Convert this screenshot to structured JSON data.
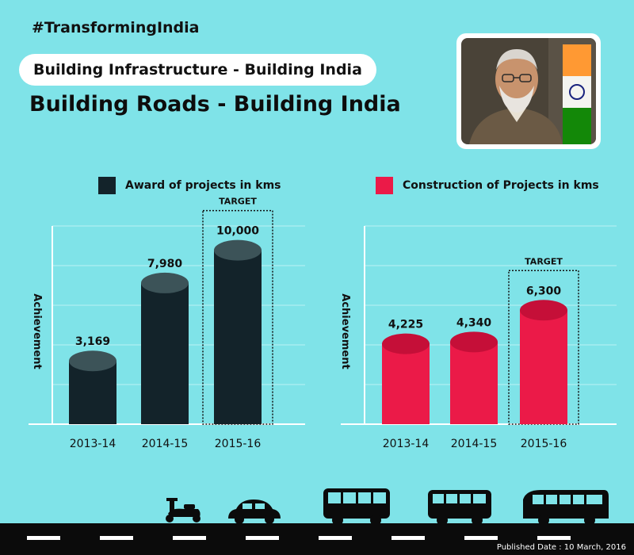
{
  "header": {
    "hashtag": "#TransformingIndia",
    "pill": "Building Infrastructure - Building India",
    "headline": "Building Roads - Building India"
  },
  "footer": {
    "published": "Published Date : 10 March, 2016"
  },
  "colors": {
    "background": "#7fe3e8",
    "award_bar": "#13232a",
    "award_top": "#3c5358",
    "construction_bar": "#eb1a48",
    "construction_top": "#c50f38"
  },
  "icons": [
    "scooter-icon",
    "car-icon",
    "bus-icon",
    "van-icon",
    "coach-icon",
    "portrait-photo"
  ],
  "chart_data": [
    {
      "type": "bar",
      "legend": "Award of projects in kms",
      "ylabel": "Achievement",
      "categories": [
        "2013-14",
        "2014-15",
        "2015-16"
      ],
      "values": [
        3169,
        7980,
        10000
      ],
      "labels": [
        "3,169",
        "7,980",
        "10,000"
      ],
      "target_index": 2,
      "target_label": "TARGET",
      "ylim": [
        0,
        11500
      ],
      "grid": true
    },
    {
      "type": "bar",
      "legend": "Construction of Projects in kms",
      "ylabel": "Achievement",
      "categories": [
        "2013-14",
        "2014-15",
        "2015-16"
      ],
      "values": [
        4225,
        4340,
        6300
      ],
      "labels": [
        "4,225",
        "4,340",
        "6,300"
      ],
      "target_index": 2,
      "target_label": "TARGET",
      "ylim": [
        0,
        11500
      ],
      "grid": true
    }
  ]
}
